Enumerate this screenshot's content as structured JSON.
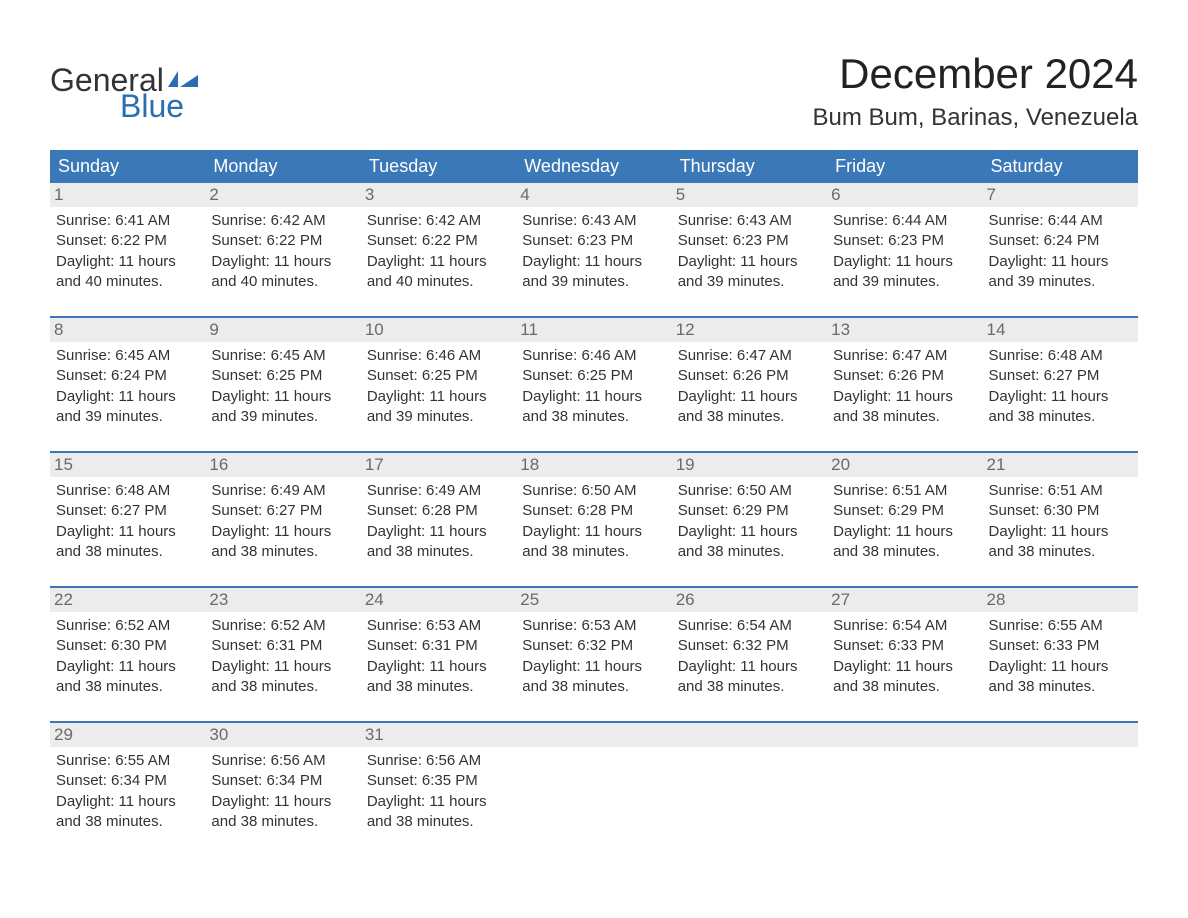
{
  "logo": {
    "top": "General",
    "bottom": "Blue"
  },
  "colors": {
    "header_bg": "#3b78b8",
    "header_text": "#ffffff",
    "daynum_bg": "#ececec",
    "daynum_text": "#6a6a6a",
    "accent": "#2a6db2",
    "text": "#333333",
    "page_bg": "#ffffff"
  },
  "typography": {
    "month_title_pt": 42,
    "location_pt": 24,
    "header_cell_pt": 18,
    "body_pt": 15
  },
  "month_title": "December 2024",
  "location": "Bum Bum, Barinas, Venezuela",
  "weekdays": [
    "Sunday",
    "Monday",
    "Tuesday",
    "Wednesday",
    "Thursday",
    "Friday",
    "Saturday"
  ],
  "weeks": [
    [
      {
        "n": "1",
        "sunrise": "Sunrise: 6:41 AM",
        "sunset": "Sunset: 6:22 PM",
        "d1": "Daylight: 11 hours",
        "d2": "and 40 minutes."
      },
      {
        "n": "2",
        "sunrise": "Sunrise: 6:42 AM",
        "sunset": "Sunset: 6:22 PM",
        "d1": "Daylight: 11 hours",
        "d2": "and 40 minutes."
      },
      {
        "n": "3",
        "sunrise": "Sunrise: 6:42 AM",
        "sunset": "Sunset: 6:22 PM",
        "d1": "Daylight: 11 hours",
        "d2": "and 40 minutes."
      },
      {
        "n": "4",
        "sunrise": "Sunrise: 6:43 AM",
        "sunset": "Sunset: 6:23 PM",
        "d1": "Daylight: 11 hours",
        "d2": "and 39 minutes."
      },
      {
        "n": "5",
        "sunrise": "Sunrise: 6:43 AM",
        "sunset": "Sunset: 6:23 PM",
        "d1": "Daylight: 11 hours",
        "d2": "and 39 minutes."
      },
      {
        "n": "6",
        "sunrise": "Sunrise: 6:44 AM",
        "sunset": "Sunset: 6:23 PM",
        "d1": "Daylight: 11 hours",
        "d2": "and 39 minutes."
      },
      {
        "n": "7",
        "sunrise": "Sunrise: 6:44 AM",
        "sunset": "Sunset: 6:24 PM",
        "d1": "Daylight: 11 hours",
        "d2": "and 39 minutes."
      }
    ],
    [
      {
        "n": "8",
        "sunrise": "Sunrise: 6:45 AM",
        "sunset": "Sunset: 6:24 PM",
        "d1": "Daylight: 11 hours",
        "d2": "and 39 minutes."
      },
      {
        "n": "9",
        "sunrise": "Sunrise: 6:45 AM",
        "sunset": "Sunset: 6:25 PM",
        "d1": "Daylight: 11 hours",
        "d2": "and 39 minutes."
      },
      {
        "n": "10",
        "sunrise": "Sunrise: 6:46 AM",
        "sunset": "Sunset: 6:25 PM",
        "d1": "Daylight: 11 hours",
        "d2": "and 39 minutes."
      },
      {
        "n": "11",
        "sunrise": "Sunrise: 6:46 AM",
        "sunset": "Sunset: 6:25 PM",
        "d1": "Daylight: 11 hours",
        "d2": "and 38 minutes."
      },
      {
        "n": "12",
        "sunrise": "Sunrise: 6:47 AM",
        "sunset": "Sunset: 6:26 PM",
        "d1": "Daylight: 11 hours",
        "d2": "and 38 minutes."
      },
      {
        "n": "13",
        "sunrise": "Sunrise: 6:47 AM",
        "sunset": "Sunset: 6:26 PM",
        "d1": "Daylight: 11 hours",
        "d2": "and 38 minutes."
      },
      {
        "n": "14",
        "sunrise": "Sunrise: 6:48 AM",
        "sunset": "Sunset: 6:27 PM",
        "d1": "Daylight: 11 hours",
        "d2": "and 38 minutes."
      }
    ],
    [
      {
        "n": "15",
        "sunrise": "Sunrise: 6:48 AM",
        "sunset": "Sunset: 6:27 PM",
        "d1": "Daylight: 11 hours",
        "d2": "and 38 minutes."
      },
      {
        "n": "16",
        "sunrise": "Sunrise: 6:49 AM",
        "sunset": "Sunset: 6:27 PM",
        "d1": "Daylight: 11 hours",
        "d2": "and 38 minutes."
      },
      {
        "n": "17",
        "sunrise": "Sunrise: 6:49 AM",
        "sunset": "Sunset: 6:28 PM",
        "d1": "Daylight: 11 hours",
        "d2": "and 38 minutes."
      },
      {
        "n": "18",
        "sunrise": "Sunrise: 6:50 AM",
        "sunset": "Sunset: 6:28 PM",
        "d1": "Daylight: 11 hours",
        "d2": "and 38 minutes."
      },
      {
        "n": "19",
        "sunrise": "Sunrise: 6:50 AM",
        "sunset": "Sunset: 6:29 PM",
        "d1": "Daylight: 11 hours",
        "d2": "and 38 minutes."
      },
      {
        "n": "20",
        "sunrise": "Sunrise: 6:51 AM",
        "sunset": "Sunset: 6:29 PM",
        "d1": "Daylight: 11 hours",
        "d2": "and 38 minutes."
      },
      {
        "n": "21",
        "sunrise": "Sunrise: 6:51 AM",
        "sunset": "Sunset: 6:30 PM",
        "d1": "Daylight: 11 hours",
        "d2": "and 38 minutes."
      }
    ],
    [
      {
        "n": "22",
        "sunrise": "Sunrise: 6:52 AM",
        "sunset": "Sunset: 6:30 PM",
        "d1": "Daylight: 11 hours",
        "d2": "and 38 minutes."
      },
      {
        "n": "23",
        "sunrise": "Sunrise: 6:52 AM",
        "sunset": "Sunset: 6:31 PM",
        "d1": "Daylight: 11 hours",
        "d2": "and 38 minutes."
      },
      {
        "n": "24",
        "sunrise": "Sunrise: 6:53 AM",
        "sunset": "Sunset: 6:31 PM",
        "d1": "Daylight: 11 hours",
        "d2": "and 38 minutes."
      },
      {
        "n": "25",
        "sunrise": "Sunrise: 6:53 AM",
        "sunset": "Sunset: 6:32 PM",
        "d1": "Daylight: 11 hours",
        "d2": "and 38 minutes."
      },
      {
        "n": "26",
        "sunrise": "Sunrise: 6:54 AM",
        "sunset": "Sunset: 6:32 PM",
        "d1": "Daylight: 11 hours",
        "d2": "and 38 minutes."
      },
      {
        "n": "27",
        "sunrise": "Sunrise: 6:54 AM",
        "sunset": "Sunset: 6:33 PM",
        "d1": "Daylight: 11 hours",
        "d2": "and 38 minutes."
      },
      {
        "n": "28",
        "sunrise": "Sunrise: 6:55 AM",
        "sunset": "Sunset: 6:33 PM",
        "d1": "Daylight: 11 hours",
        "d2": "and 38 minutes."
      }
    ],
    [
      {
        "n": "29",
        "sunrise": "Sunrise: 6:55 AM",
        "sunset": "Sunset: 6:34 PM",
        "d1": "Daylight: 11 hours",
        "d2": "and 38 minutes."
      },
      {
        "n": "30",
        "sunrise": "Sunrise: 6:56 AM",
        "sunset": "Sunset: 6:34 PM",
        "d1": "Daylight: 11 hours",
        "d2": "and 38 minutes."
      },
      {
        "n": "31",
        "sunrise": "Sunrise: 6:56 AM",
        "sunset": "Sunset: 6:35 PM",
        "d1": "Daylight: 11 hours",
        "d2": "and 38 minutes."
      },
      null,
      null,
      null,
      null
    ]
  ]
}
